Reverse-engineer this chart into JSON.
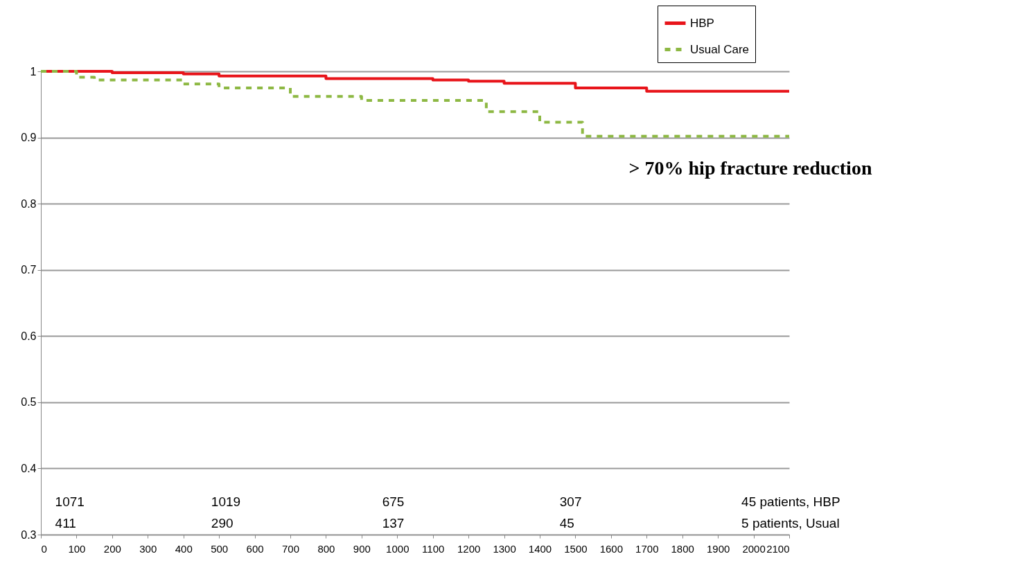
{
  "chart_data": {
    "type": "step",
    "xlim": [
      0,
      2100
    ],
    "ylim": [
      0.3,
      1
    ],
    "xticks": [
      0,
      100,
      200,
      300,
      400,
      500,
      600,
      700,
      800,
      900,
      1000,
      1100,
      1200,
      1300,
      1400,
      1500,
      1600,
      1700,
      1800,
      1900,
      2000,
      2100
    ],
    "yticks": [
      0.3,
      0.4,
      0.5,
      0.6,
      0.7,
      0.8,
      0.9,
      1
    ],
    "grid": "y",
    "legend": "top right",
    "marker": "none",
    "annotations": [
      "> 70%  hip fracture reduction",
      "1071",
      "1019",
      "675",
      "307",
      "45 patients, HBP",
      "411",
      "290",
      "137",
      "45",
      "5  patients, Usual"
    ],
    "series": [
      {
        "name": "HBP",
        "color": "#e8141a",
        "line_style": "solid",
        "x": [
          0,
          200,
          400,
          500,
          800,
          1100,
          1200,
          1300,
          1500,
          1700,
          2100
        ],
        "values": [
          1,
          0.998,
          0.996,
          0.993,
          0.989,
          0.987,
          0.985,
          0.982,
          0.975,
          0.97,
          0.97
        ]
      },
      {
        "name": "Usual Care",
        "color": "#8db843",
        "line_style": "dashed",
        "x": [
          0,
          100,
          150,
          400,
          500,
          700,
          900,
          1250,
          1400,
          1520,
          2100
        ],
        "values": [
          1,
          0.991,
          0.987,
          0.981,
          0.975,
          0.962,
          0.956,
          0.939,
          0.923,
          0.902,
          0.902
        ]
      }
    ]
  }
}
